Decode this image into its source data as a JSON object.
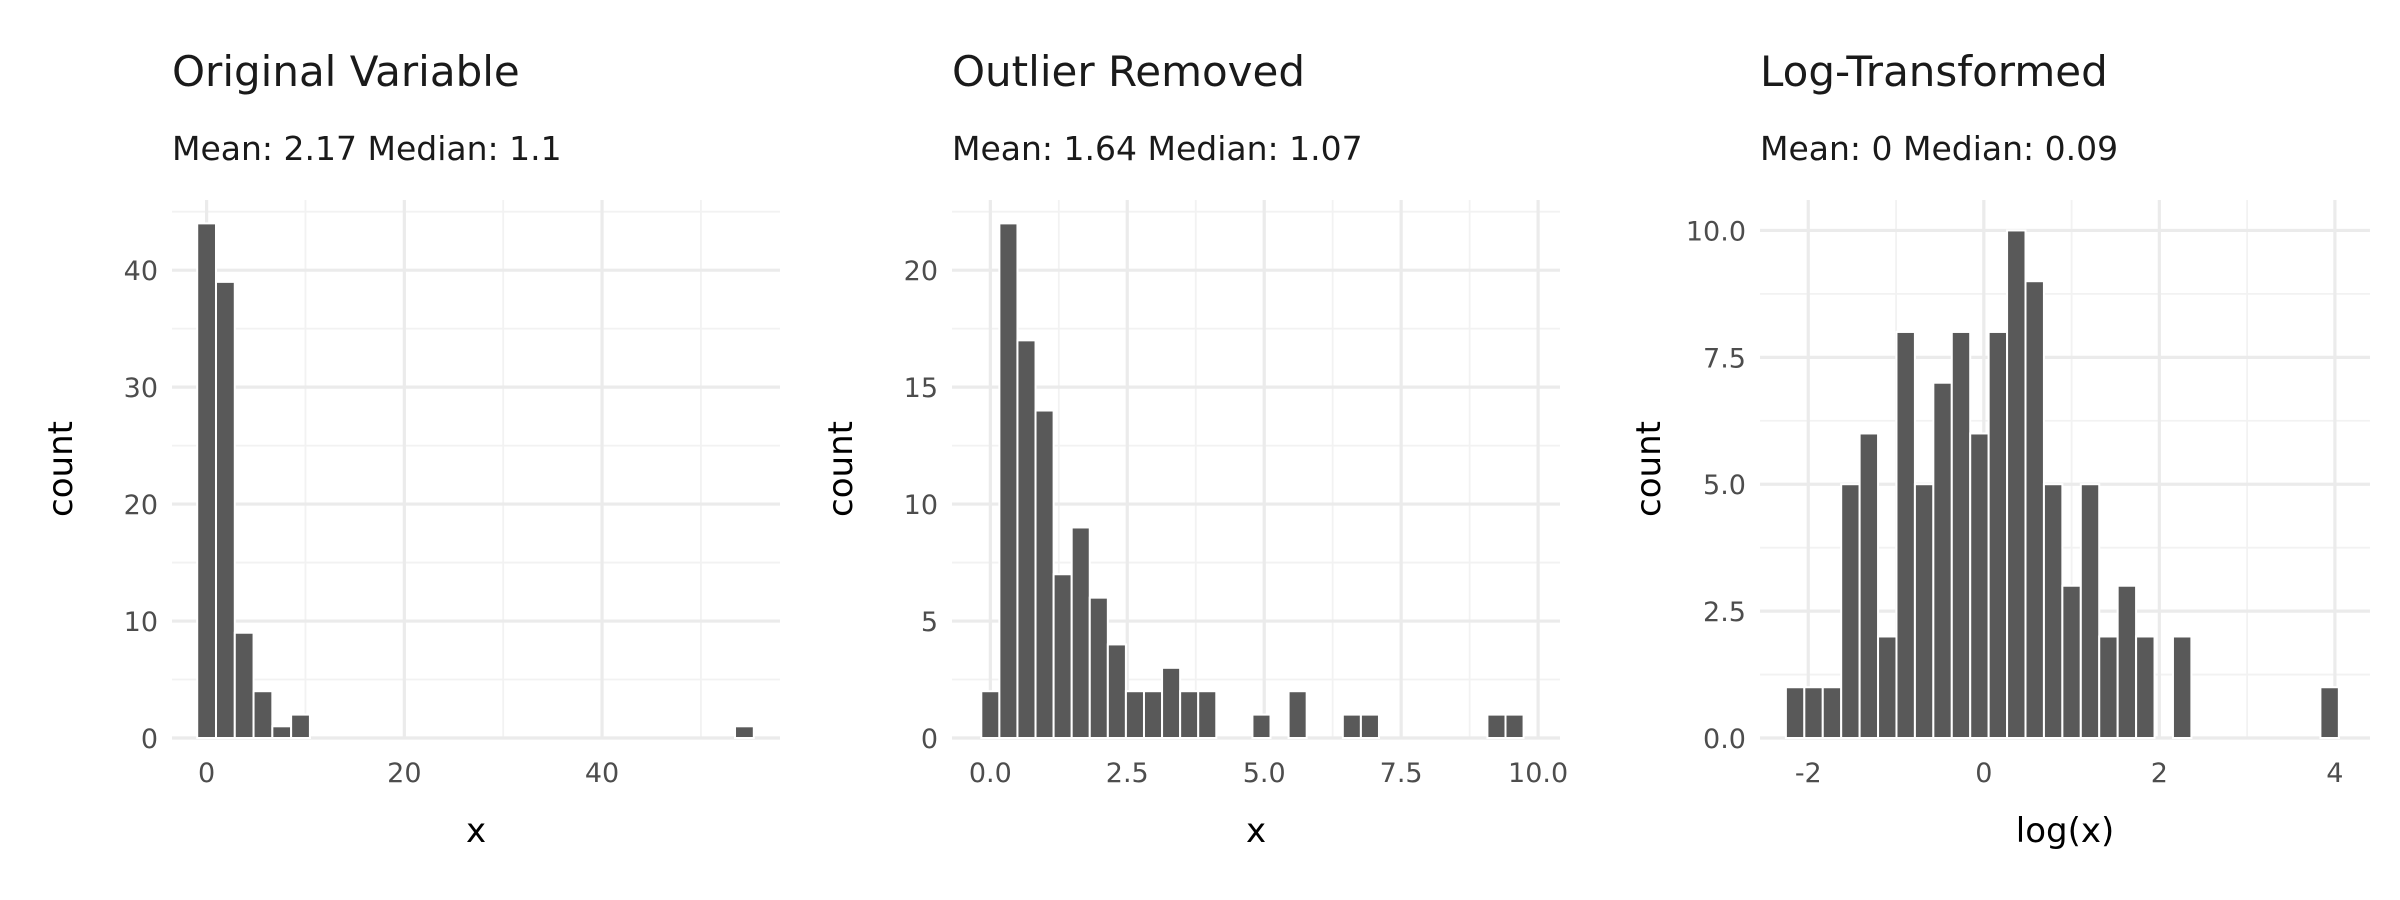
{
  "chart_data": [
    {
      "type": "bar",
      "title": "Original Variable",
      "subtitle": "Mean: 2.17 Median: 1.1",
      "xlabel": "x",
      "ylabel": "count",
      "xlim": [
        -3.5,
        58
      ],
      "ylim": [
        0,
        46
      ],
      "x_ticks": [
        0,
        20,
        40
      ],
      "x_tick_labels": [
        "0",
        "20",
        "40"
      ],
      "y_ticks": [
        0,
        10,
        20,
        30,
        40
      ],
      "y_tick_labels": [
        "0",
        "10",
        "20",
        "30",
        "40"
      ],
      "grid": true,
      "bins": [
        {
          "x": 0,
          "value": 44
        },
        {
          "x": 1.9,
          "value": 39
        },
        {
          "x": 3.8,
          "value": 9
        },
        {
          "x": 5.7,
          "value": 4
        },
        {
          "x": 7.6,
          "value": 1
        },
        {
          "x": 9.5,
          "value": 2
        },
        {
          "x": 54.4,
          "value": 1
        }
      ]
    },
    {
      "type": "bar",
      "title": "Outlier Removed",
      "subtitle": "Mean: 1.64 Median: 1.07",
      "xlabel": "x",
      "ylabel": "count",
      "xlim": [
        -0.7,
        10.4
      ],
      "ylim": [
        0,
        23
      ],
      "x_ticks": [
        0,
        2.5,
        5,
        7.5,
        10
      ],
      "x_tick_labels": [
        "0.0",
        "2.5",
        "5.0",
        "7.5",
        "10.0"
      ],
      "y_ticks": [
        0,
        5,
        10,
        15,
        20
      ],
      "y_tick_labels": [
        "0",
        "5",
        "10",
        "15",
        "20"
      ],
      "grid": true,
      "bins": [
        {
          "x": 0,
          "value": 2
        },
        {
          "x": 0.33,
          "value": 22
        },
        {
          "x": 0.66,
          "value": 17
        },
        {
          "x": 0.99,
          "value": 14
        },
        {
          "x": 1.32,
          "value": 7
        },
        {
          "x": 1.65,
          "value": 9
        },
        {
          "x": 1.98,
          "value": 6
        },
        {
          "x": 2.31,
          "value": 4
        },
        {
          "x": 2.64,
          "value": 2
        },
        {
          "x": 2.97,
          "value": 2
        },
        {
          "x": 3.3,
          "value": 3
        },
        {
          "x": 3.63,
          "value": 2
        },
        {
          "x": 3.96,
          "value": 2
        },
        {
          "x": 4.95,
          "value": 1
        },
        {
          "x": 5.61,
          "value": 2
        },
        {
          "x": 6.6,
          "value": 1
        },
        {
          "x": 6.93,
          "value": 1
        },
        {
          "x": 9.24,
          "value": 1
        },
        {
          "x": 9.57,
          "value": 1
        }
      ]
    },
    {
      "type": "bar",
      "title": "Log-Transformed",
      "subtitle": "Mean: 0 Median: 0.09",
      "xlabel": "log(x)",
      "ylabel": "count",
      "xlim": [
        -2.55,
        4.4
      ],
      "ylim": [
        0,
        10.6
      ],
      "x_ticks": [
        -2,
        0,
        2,
        4
      ],
      "x_tick_labels": [
        "-2",
        "0",
        "2",
        "4"
      ],
      "y_ticks": [
        0,
        2.5,
        5,
        7.5,
        10
      ],
      "y_tick_labels": [
        "0.0",
        "2.5",
        "5.0",
        "7.5",
        "10.0"
      ],
      "grid": true,
      "bins": [
        {
          "x": -2.15,
          "value": 1
        },
        {
          "x": -1.94,
          "value": 1
        },
        {
          "x": -1.73,
          "value": 1
        },
        {
          "x": -1.52,
          "value": 5
        },
        {
          "x": -1.31,
          "value": 6
        },
        {
          "x": -1.1,
          "value": 2
        },
        {
          "x": -0.89,
          "value": 8
        },
        {
          "x": -0.68,
          "value": 5
        },
        {
          "x": -0.47,
          "value": 7
        },
        {
          "x": -0.26,
          "value": 8
        },
        {
          "x": -0.05,
          "value": 6
        },
        {
          "x": 0.16,
          "value": 8
        },
        {
          "x": 0.37,
          "value": 10
        },
        {
          "x": 0.58,
          "value": 9
        },
        {
          "x": 0.79,
          "value": 5
        },
        {
          "x": 1.0,
          "value": 3
        },
        {
          "x": 1.21,
          "value": 5
        },
        {
          "x": 1.42,
          "value": 2
        },
        {
          "x": 1.63,
          "value": 3
        },
        {
          "x": 1.84,
          "value": 2
        },
        {
          "x": 2.26,
          "value": 2
        },
        {
          "x": 3.94,
          "value": 1
        }
      ]
    }
  ]
}
